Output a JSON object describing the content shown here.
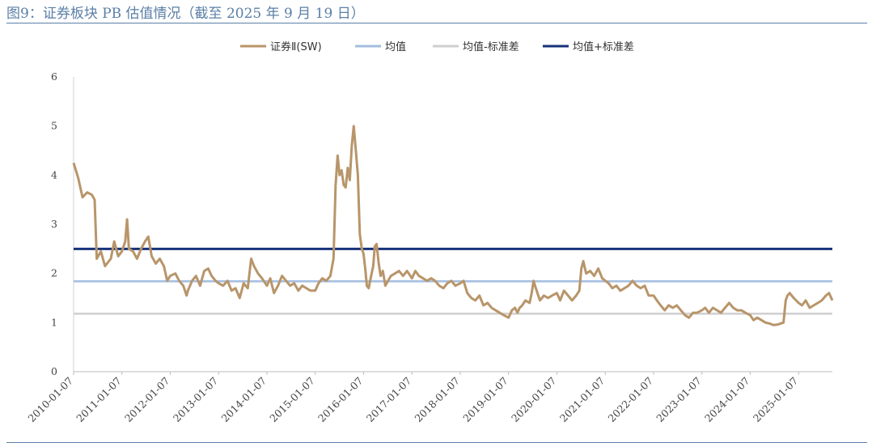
{
  "title": "图9：证券板块 PB 估值情况（截至 2025 年 9 月 19 日）",
  "chart_data": {
    "type": "line",
    "title": "",
    "xlabel": "",
    "ylabel": "",
    "ylim": [
      0,
      6
    ],
    "yticks": [
      "0",
      "1",
      "2",
      "3",
      "4",
      "5",
      "6"
    ],
    "x_tick_labels": [
      "2010-01-07",
      "2011-01-07",
      "2012-01-07",
      "2013-01-07",
      "2014-01-07",
      "2015-01-07",
      "2016-01-07",
      "2017-01-07",
      "2018-01-07",
      "2019-01-07",
      "2020-01-07",
      "2021-01-07",
      "2022-01-07",
      "2023-01-07",
      "2024-01-07",
      "2025-01-07"
    ],
    "x_range": [
      "2010-01-07",
      "2025-09-19"
    ],
    "legend_position": "top-center",
    "grid": false,
    "series": [
      {
        "name": "证券Ⅱ(SW)",
        "color": "#b8956a",
        "points": [
          [
            "2010-01-07",
            4.25
          ],
          [
            "2010-02-10",
            3.95
          ],
          [
            "2010-03-15",
            3.55
          ],
          [
            "2010-04-20",
            3.65
          ],
          [
            "2010-05-25",
            3.6
          ],
          [
            "2010-06-15",
            3.5
          ],
          [
            "2010-07-01",
            2.3
          ],
          [
            "2010-08-01",
            2.45
          ],
          [
            "2010-09-01",
            2.15
          ],
          [
            "2010-10-15",
            2.3
          ],
          [
            "2010-11-10",
            2.65
          ],
          [
            "2010-12-10",
            2.35
          ],
          [
            "2011-01-07",
            2.45
          ],
          [
            "2011-02-01",
            2.65
          ],
          [
            "2011-02-15",
            3.1
          ],
          [
            "2011-03-01",
            2.5
          ],
          [
            "2011-04-01",
            2.45
          ],
          [
            "2011-05-01",
            2.3
          ],
          [
            "2011-06-01",
            2.5
          ],
          [
            "2011-07-01",
            2.65
          ],
          [
            "2011-07-25",
            2.75
          ],
          [
            "2011-08-20",
            2.35
          ],
          [
            "2011-09-20",
            2.2
          ],
          [
            "2011-10-20",
            2.3
          ],
          [
            "2011-11-20",
            2.15
          ],
          [
            "2011-12-15",
            1.85
          ],
          [
            "2012-01-07",
            1.95
          ],
          [
            "2012-02-15",
            2.0
          ],
          [
            "2012-03-15",
            1.85
          ],
          [
            "2012-04-15",
            1.75
          ],
          [
            "2012-05-10",
            1.55
          ],
          [
            "2012-05-20",
            1.65
          ],
          [
            "2012-06-20",
            1.85
          ],
          [
            "2012-07-20",
            1.95
          ],
          [
            "2012-08-20",
            1.75
          ],
          [
            "2012-09-20",
            2.05
          ],
          [
            "2012-10-20",
            2.1
          ],
          [
            "2012-11-15",
            1.95
          ],
          [
            "2012-12-15",
            1.85
          ],
          [
            "2013-01-07",
            1.8
          ],
          [
            "2013-02-10",
            1.75
          ],
          [
            "2013-03-15",
            1.85
          ],
          [
            "2013-04-15",
            1.65
          ],
          [
            "2013-05-15",
            1.7
          ],
          [
            "2013-06-15",
            1.5
          ],
          [
            "2013-07-15",
            1.8
          ],
          [
            "2013-08-15",
            1.7
          ],
          [
            "2013-09-10",
            2.3
          ],
          [
            "2013-10-01",
            2.15
          ],
          [
            "2013-11-01",
            2.0
          ],
          [
            "2013-12-01",
            1.9
          ],
          [
            "2014-01-07",
            1.75
          ],
          [
            "2014-02-01",
            1.9
          ],
          [
            "2014-03-01",
            1.6
          ],
          [
            "2014-04-01",
            1.75
          ],
          [
            "2014-05-01",
            1.95
          ],
          [
            "2014-06-01",
            1.85
          ],
          [
            "2014-07-01",
            1.75
          ],
          [
            "2014-08-01",
            1.8
          ],
          [
            "2014-09-01",
            1.65
          ],
          [
            "2014-10-01",
            1.75
          ],
          [
            "2014-11-01",
            1.7
          ],
          [
            "2014-12-01",
            1.65
          ],
          [
            "2015-01-07",
            1.65
          ],
          [
            "2015-02-01",
            1.8
          ],
          [
            "2015-03-01",
            1.9
          ],
          [
            "2015-04-01",
            1.85
          ],
          [
            "2015-05-01",
            1.95
          ],
          [
            "2015-05-25",
            2.3
          ],
          [
            "2015-06-10",
            3.8
          ],
          [
            "2015-06-25",
            4.4
          ],
          [
            "2015-07-10",
            4.0
          ],
          [
            "2015-07-25",
            4.1
          ],
          [
            "2015-08-10",
            3.8
          ],
          [
            "2015-08-25",
            3.75
          ],
          [
            "2015-09-10",
            4.15
          ],
          [
            "2015-09-25",
            3.9
          ],
          [
            "2015-10-10",
            4.6
          ],
          [
            "2015-10-25",
            5.0
          ],
          [
            "2015-11-10",
            4.5
          ],
          [
            "2015-11-25",
            4.0
          ],
          [
            "2015-12-10",
            2.8
          ],
          [
            "2015-12-25",
            2.5
          ],
          [
            "2016-01-07",
            2.4
          ],
          [
            "2016-01-20",
            2.1
          ],
          [
            "2016-02-01",
            1.75
          ],
          [
            "2016-02-15",
            1.7
          ],
          [
            "2016-03-01",
            1.9
          ],
          [
            "2016-03-20",
            2.15
          ],
          [
            "2016-04-01",
            2.55
          ],
          [
            "2016-04-15",
            2.6
          ],
          [
            "2016-05-01",
            2.2
          ],
          [
            "2016-05-15",
            1.95
          ],
          [
            "2016-06-01",
            2.05
          ],
          [
            "2016-06-20",
            1.75
          ],
          [
            "2016-07-10",
            1.85
          ],
          [
            "2016-08-01",
            1.95
          ],
          [
            "2016-09-01",
            2.0
          ],
          [
            "2016-10-01",
            2.05
          ],
          [
            "2016-11-01",
            1.95
          ],
          [
            "2016-12-01",
            2.05
          ],
          [
            "2017-01-07",
            1.9
          ],
          [
            "2017-02-01",
            2.05
          ],
          [
            "2017-03-01",
            1.95
          ],
          [
            "2017-04-01",
            1.9
          ],
          [
            "2017-05-01",
            1.85
          ],
          [
            "2017-06-01",
            1.9
          ],
          [
            "2017-07-01",
            1.85
          ],
          [
            "2017-08-01",
            1.75
          ],
          [
            "2017-09-01",
            1.7
          ],
          [
            "2017-10-01",
            1.8
          ],
          [
            "2017-11-01",
            1.85
          ],
          [
            "2017-12-01",
            1.75
          ],
          [
            "2018-01-07",
            1.8
          ],
          [
            "2018-02-01",
            1.85
          ],
          [
            "2018-03-01",
            1.6
          ],
          [
            "2018-04-01",
            1.5
          ],
          [
            "2018-05-01",
            1.45
          ],
          [
            "2018-06-01",
            1.55
          ],
          [
            "2018-07-01",
            1.35
          ],
          [
            "2018-08-01",
            1.4
          ],
          [
            "2018-09-01",
            1.3
          ],
          [
            "2018-10-01",
            1.25
          ],
          [
            "2018-11-01",
            1.2
          ],
          [
            "2018-12-01",
            1.15
          ],
          [
            "2019-01-07",
            1.1
          ],
          [
            "2019-02-01",
            1.25
          ],
          [
            "2019-02-25",
            1.3
          ],
          [
            "2019-03-15",
            1.2
          ],
          [
            "2019-04-01",
            1.3
          ],
          [
            "2019-04-20",
            1.35
          ],
          [
            "2019-05-15",
            1.45
          ],
          [
            "2019-06-15",
            1.4
          ],
          [
            "2019-07-01",
            1.6
          ],
          [
            "2019-07-15",
            1.85
          ],
          [
            "2019-08-01",
            1.7
          ],
          [
            "2019-09-01",
            1.45
          ],
          [
            "2019-10-01",
            1.55
          ],
          [
            "2019-11-01",
            1.5
          ],
          [
            "2019-12-01",
            1.55
          ],
          [
            "2020-01-07",
            1.6
          ],
          [
            "2020-02-01",
            1.45
          ],
          [
            "2020-03-01",
            1.65
          ],
          [
            "2020-04-01",
            1.55
          ],
          [
            "2020-05-01",
            1.45
          ],
          [
            "2020-06-01",
            1.55
          ],
          [
            "2020-06-25",
            1.65
          ],
          [
            "2020-07-10",
            2.1
          ],
          [
            "2020-07-25",
            2.25
          ],
          [
            "2020-08-15",
            2.0
          ],
          [
            "2020-09-15",
            2.05
          ],
          [
            "2020-10-15",
            1.95
          ],
          [
            "2020-11-15",
            2.1
          ],
          [
            "2020-12-15",
            1.9
          ],
          [
            "2021-01-07",
            1.85
          ],
          [
            "2021-02-01",
            1.8
          ],
          [
            "2021-03-01",
            1.7
          ],
          [
            "2021-04-01",
            1.75
          ],
          [
            "2021-05-01",
            1.65
          ],
          [
            "2021-06-01",
            1.7
          ],
          [
            "2021-07-01",
            1.75
          ],
          [
            "2021-08-01",
            1.85
          ],
          [
            "2021-09-01",
            1.75
          ],
          [
            "2021-10-01",
            1.7
          ],
          [
            "2021-11-01",
            1.75
          ],
          [
            "2021-12-01",
            1.55
          ],
          [
            "2022-01-07",
            1.55
          ],
          [
            "2022-02-01",
            1.45
          ],
          [
            "2022-03-01",
            1.35
          ],
          [
            "2022-04-01",
            1.25
          ],
          [
            "2022-05-01",
            1.35
          ],
          [
            "2022-06-01",
            1.3
          ],
          [
            "2022-07-01",
            1.35
          ],
          [
            "2022-08-01",
            1.25
          ],
          [
            "2022-09-01",
            1.15
          ],
          [
            "2022-10-01",
            1.1
          ],
          [
            "2022-11-01",
            1.2
          ],
          [
            "2022-12-01",
            1.2
          ],
          [
            "2023-01-07",
            1.25
          ],
          [
            "2023-02-01",
            1.3
          ],
          [
            "2023-03-01",
            1.2
          ],
          [
            "2023-04-01",
            1.3
          ],
          [
            "2023-05-01",
            1.25
          ],
          [
            "2023-06-01",
            1.2
          ],
          [
            "2023-07-01",
            1.3
          ],
          [
            "2023-08-01",
            1.4
          ],
          [
            "2023-09-01",
            1.3
          ],
          [
            "2023-10-01",
            1.25
          ],
          [
            "2023-11-01",
            1.25
          ],
          [
            "2023-12-01",
            1.2
          ],
          [
            "2024-01-07",
            1.15
          ],
          [
            "2024-02-01",
            1.05
          ],
          [
            "2024-03-01",
            1.1
          ],
          [
            "2024-04-01",
            1.05
          ],
          [
            "2024-05-01",
            1.0
          ],
          [
            "2024-06-01",
            0.98
          ],
          [
            "2024-07-01",
            0.95
          ],
          [
            "2024-08-01",
            0.96
          ],
          [
            "2024-09-15",
            1.0
          ],
          [
            "2024-10-01",
            1.45
          ],
          [
            "2024-10-15",
            1.55
          ],
          [
            "2024-11-01",
            1.6
          ],
          [
            "2024-12-01",
            1.5
          ],
          [
            "2025-01-07",
            1.4
          ],
          [
            "2025-02-01",
            1.35
          ],
          [
            "2025-03-01",
            1.45
          ],
          [
            "2025-04-01",
            1.3
          ],
          [
            "2025-05-01",
            1.35
          ],
          [
            "2025-06-01",
            1.4
          ],
          [
            "2025-07-01",
            1.45
          ],
          [
            "2025-08-01",
            1.55
          ],
          [
            "2025-08-25",
            1.6
          ],
          [
            "2025-09-19",
            1.45
          ]
        ]
      },
      {
        "name": "均值",
        "color": "#a3bde0",
        "constant": 1.84
      },
      {
        "name": "均值-标准差",
        "color": "#cfcfcf",
        "constant": 1.18
      },
      {
        "name": "均值+标准差",
        "color": "#17327a",
        "constant": 2.5
      }
    ]
  }
}
